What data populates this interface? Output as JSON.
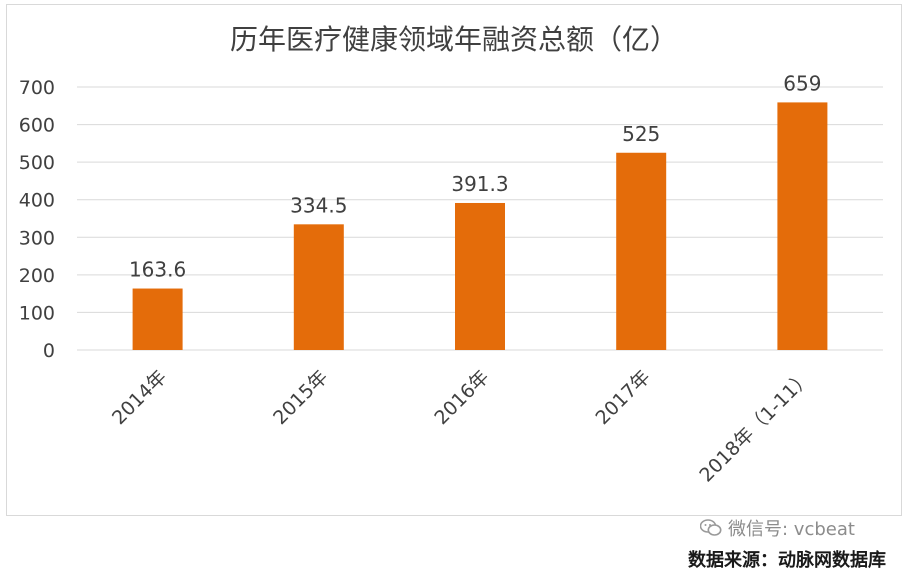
{
  "chart_data": {
    "type": "bar",
    "title": "历年医疗健康领域年融资总额（亿）",
    "categories": [
      "2014年",
      "2015年",
      "2016年",
      "2017年",
      "2018年（1-11）"
    ],
    "values": [
      163.6,
      334.5,
      391.3,
      525,
      659
    ],
    "value_labels": [
      "163.6",
      "334.5",
      "391.3",
      "525",
      "659"
    ],
    "ylim": [
      0,
      700
    ],
    "yticks": [
      0,
      100,
      200,
      300,
      400,
      500,
      600,
      700
    ],
    "ytick_labels": [
      "0",
      "100",
      "200",
      "300",
      "400",
      "500",
      "600",
      "700"
    ],
    "grid": true,
    "bar_color": "#e46c0a"
  },
  "watermark": {
    "text": "微信号: vcbeat",
    "icon": "wechat-icon"
  },
  "source": "数据来源：动脉网数据库"
}
